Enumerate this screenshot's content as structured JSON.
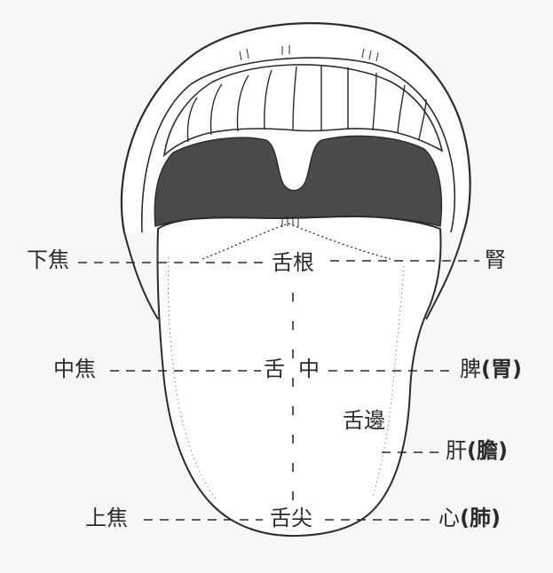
{
  "labels": {
    "xia_jiao": "下焦",
    "zhong_jiao": "中焦",
    "shang_jiao": "上焦",
    "she_gen": "舌根",
    "she": "舌",
    "zhong": "中",
    "she_jian": "舌尖",
    "she_bian": "舌邊",
    "shen": "腎",
    "pi": "脾",
    "wei": "(胃)",
    "gan": "肝",
    "dan": "(膽)",
    "xin": "心",
    "fei": "(肺)"
  },
  "colors": {
    "ink": "#2b2b2b",
    "palate": "#4a4a4a",
    "background": "#f7f7f5",
    "tongue": "#ffffff"
  }
}
